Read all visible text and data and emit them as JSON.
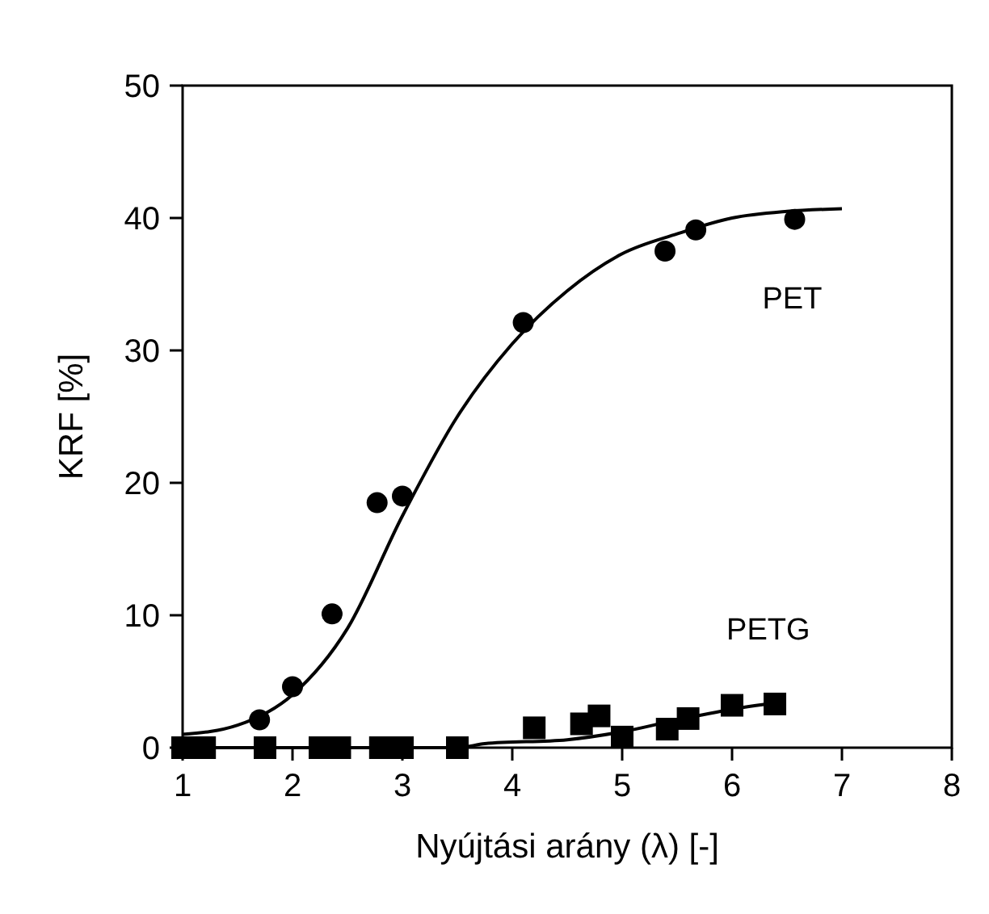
{
  "chart_data": {
    "type": "scatter",
    "xlabel": "Nyújtási arány (λ) [-]",
    "ylabel": "KRF [%]",
    "xlim": [
      1,
      8
    ],
    "ylim": [
      0,
      50
    ],
    "xticks": [
      1,
      2,
      3,
      4,
      5,
      6,
      7,
      8
    ],
    "yticks": [
      0,
      10,
      20,
      30,
      40,
      50
    ],
    "grid": false,
    "series": [
      {
        "name": "PET",
        "marker": "circle",
        "color": "#000000",
        "x": [
          1.7,
          2.0,
          2.36,
          2.77,
          3.0,
          4.1,
          5.39,
          5.67,
          6.57
        ],
        "values": [
          2.1,
          4.6,
          10.1,
          18.5,
          19,
          32.1,
          37.5,
          39.1,
          39.9
        ]
      },
      {
        "name": "PETG",
        "marker": "square",
        "color": "#000000",
        "x": [
          1.0,
          1.2,
          1.75,
          2.25,
          2.43,
          2.8,
          3.0,
          3.5,
          4.2,
          4.63,
          4.79,
          5.0,
          5.41,
          5.6,
          6.0,
          6.39
        ],
        "values": [
          0,
          0,
          0,
          0,
          0,
          0,
          0,
          0,
          1.5,
          1.8,
          2.4,
          0.8,
          1.4,
          2.2,
          3.2,
          3.3
        ]
      },
      {
        "type": "line",
        "marker": "none",
        "line_style": "solid",
        "color": "#000000",
        "x": [
          1,
          1.5,
          2,
          2.5,
          3,
          3.5,
          4,
          4.5,
          5,
          5.5,
          6,
          6.5,
          7
        ],
        "values": [
          1,
          1.7,
          4,
          9,
          17.5,
          25,
          30.5,
          34.5,
          37.3,
          38.8,
          40,
          40.5,
          40.7
        ]
      },
      {
        "type": "line",
        "marker": "none",
        "line_style": "solid",
        "color": "#000000",
        "x": [
          1,
          3.5,
          3.75,
          4.5,
          5,
          5.5,
          6,
          6.4
        ],
        "values": [
          0,
          0,
          0.3,
          0.6,
          1.2,
          2.1,
          2.9,
          3.4
        ]
      }
    ]
  }
}
